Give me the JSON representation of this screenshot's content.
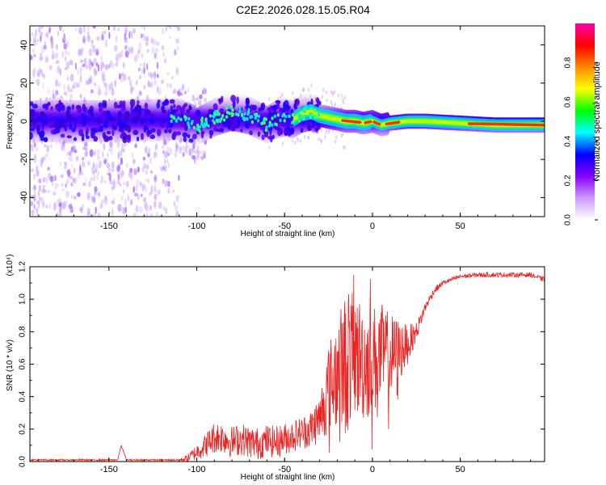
{
  "title": "C2E2.2026.028.15.05.R04",
  "chart_data": [
    {
      "type": "heatmap",
      "xlabel": "Height of straight line (km)",
      "ylabel": "Frequency (Hz)",
      "xlim": [
        -195,
        98
      ],
      "ylim": [
        -50,
        50
      ],
      "xticks": [
        -150,
        -100,
        -50,
        0,
        50
      ],
      "yticks": [
        -40,
        -20,
        0,
        20,
        40
      ],
      "colorbar": {
        "label": "Normalized spectral amplitude",
        "range": [
          0,
          1
        ],
        "ticks": [
          "0.0",
          "0.2",
          "0.4",
          "0.6",
          "0.8"
        ],
        "colors": [
          "#ffffff",
          "#cc99ff",
          "#8800ff",
          "#0000ff",
          "#00ffff",
          "#00ff00",
          "#ffff00",
          "#ff8800",
          "#ff0000",
          "#ff00aa"
        ]
      },
      "centerline": {
        "description": "frequency center of the spectral band vs height",
        "x": [
          -195,
          -150,
          -110,
          -100,
          -90,
          -80,
          -70,
          -60,
          -55,
          -50,
          -45,
          -40,
          -35,
          -30,
          -25,
          -20,
          -15,
          -10,
          -5,
          0,
          5,
          10,
          20,
          30,
          50,
          70,
          98
        ],
        "y": [
          0,
          0,
          1,
          -3,
          2,
          5,
          3,
          -2,
          1,
          2,
          1,
          4,
          5,
          3,
          2,
          1,
          0,
          0,
          -1,
          0,
          -2,
          -1,
          0,
          0,
          -1,
          -2,
          -2
        ]
      }
    },
    {
      "type": "line",
      "xlabel": "Height of straight line (km)",
      "ylabel": "SNR (10 * v/v)",
      "y_multiplier": "(x10⁴)",
      "color": "#ee2222",
      "xlim": [
        -195,
        98
      ],
      "ylim": [
        0,
        1.2
      ],
      "xticks": [
        -150,
        -100,
        -50,
        0,
        50
      ],
      "yticks": [
        "0.0",
        "0.2",
        "0.4",
        "0.6",
        "0.8",
        "1.0",
        "1.2"
      ],
      "envelope": {
        "x": [
          -195,
          -145,
          -143,
          -140,
          -110,
          -105,
          -100,
          -95,
          -90,
          -85,
          -80,
          -75,
          -70,
          -65,
          -60,
          -55,
          -50,
          -45,
          -40,
          -35,
          -30,
          -25,
          -20,
          -15,
          -10,
          -5,
          0,
          5,
          10,
          15,
          20,
          25,
          30,
          35,
          40,
          50,
          60,
          70,
          80,
          90,
          98
        ],
        "y": [
          0.01,
          0.01,
          0.1,
          0.01,
          0.01,
          0.02,
          0.06,
          0.1,
          0.15,
          0.15,
          0.12,
          0.14,
          0.12,
          0.11,
          0.13,
          0.12,
          0.14,
          0.16,
          0.18,
          0.2,
          0.27,
          0.45,
          0.55,
          0.6,
          0.66,
          0.62,
          0.62,
          0.66,
          0.64,
          0.68,
          0.72,
          0.8,
          0.95,
          1.05,
          1.1,
          1.14,
          1.15,
          1.15,
          1.15,
          1.15,
          1.12
        ]
      },
      "noise_amplitude": {
        "x": [
          -195,
          -110,
          -100,
          -90,
          -50,
          -40,
          -30,
          -25,
          -20,
          -15,
          -10,
          -5,
          0,
          10,
          20,
          25,
          30,
          40,
          98
        ],
        "y": [
          0.005,
          0.005,
          0.05,
          0.1,
          0.1,
          0.1,
          0.15,
          0.28,
          0.35,
          0.45,
          0.38,
          0.38,
          0.35,
          0.28,
          0.12,
          0.06,
          0.03,
          0.015,
          0.015
        ]
      }
    }
  ]
}
